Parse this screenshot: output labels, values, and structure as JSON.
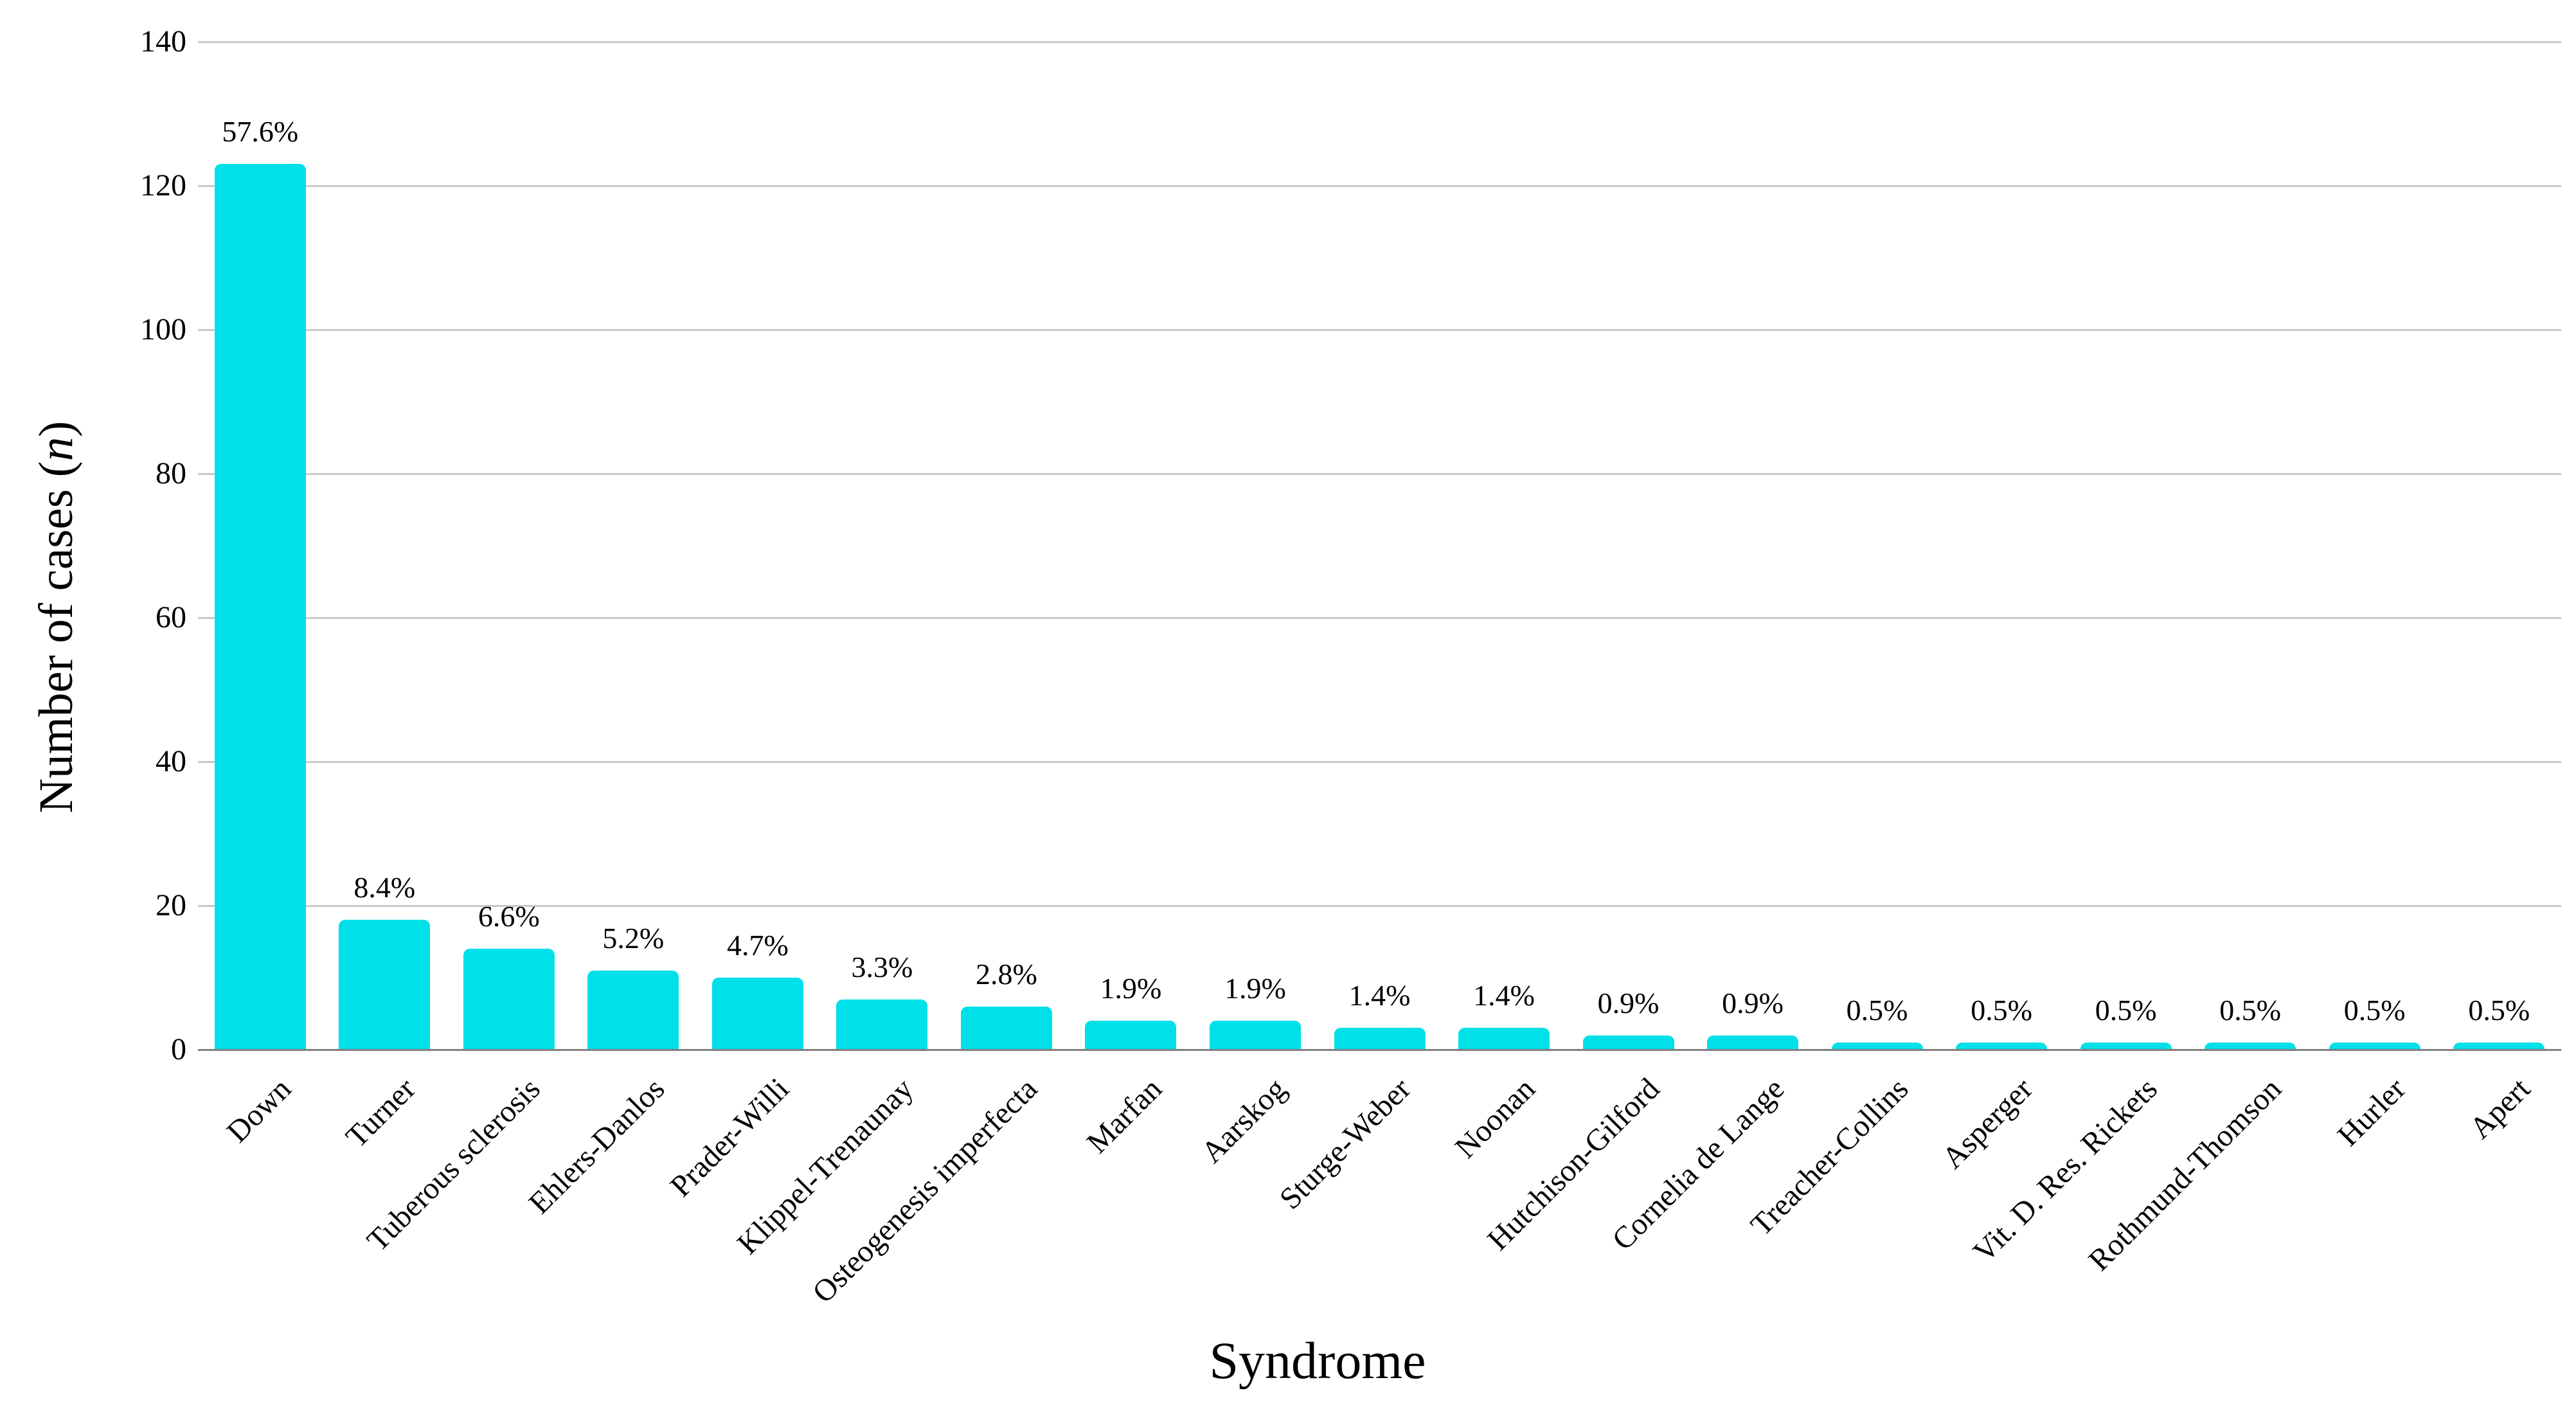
{
  "figure": {
    "background_color": "#ffffff",
    "text_color": "#000000"
  },
  "chart_data": {
    "type": "bar",
    "title": "",
    "xlabel": "Syndrome",
    "ylabel": "Number of cases (n)",
    "ylabel_parts": {
      "prefix": "Number of cases (",
      "variable": "n",
      "suffix": ")"
    },
    "categories": [
      "Down",
      "Turner",
      "Tuberous sclerosis",
      "Ehlers-Danlos",
      "Prader-Willi",
      "Klippel-Trenaunay",
      "Osteogenesis imperfecta",
      "Marfan",
      "Aarskog",
      "Sturge-Weber",
      "Noonan",
      "Hutchison-Gilford",
      "Cornelia de Lange",
      "Treacher-Collins",
      "Asperger",
      "Vit. D. Res. Rickets",
      "Rothmund-Thomson",
      "Hurler",
      "Apert"
    ],
    "values": [
      123,
      18,
      14,
      11,
      10,
      7,
      6,
      4,
      4,
      3,
      3,
      2,
      2,
      1,
      1,
      1,
      1,
      1,
      1
    ],
    "bar_labels": [
      "57.6%",
      "8.4%",
      "6.6%",
      "5.2%",
      "4.7%",
      "3.3%",
      "2.8%",
      "1.9%",
      "1.9%",
      "1.4%",
      "1.4%",
      "0.9%",
      "0.9%",
      "0.5%",
      "0.5%",
      "0.5%",
      "0.5%",
      "0.5%",
      "0.5%"
    ],
    "ylim": [
      0,
      140
    ],
    "yticks": [
      0,
      20,
      40,
      60,
      80,
      100,
      120,
      140
    ],
    "grid": "horizontal",
    "legend": "none",
    "bar_color": "#00E0E8",
    "gridline_color": "#C9C9C9",
    "axis_line_color": "#808080"
  }
}
